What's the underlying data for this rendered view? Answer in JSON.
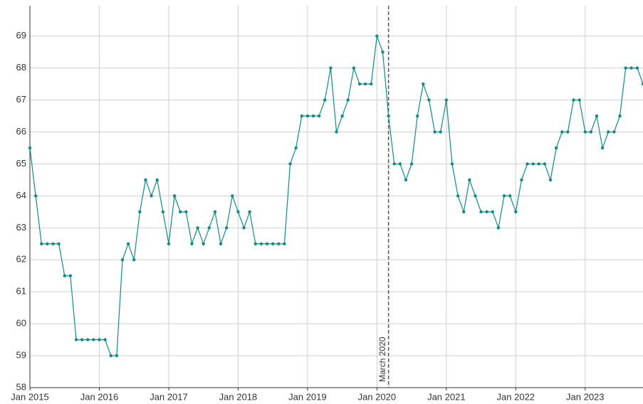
{
  "chart_data": {
    "type": "line",
    "x": [
      "2015-01",
      "2015-02",
      "2015-03",
      "2015-04",
      "2015-05",
      "2015-06",
      "2015-07",
      "2015-08",
      "2015-09",
      "2015-10",
      "2015-11",
      "2015-12",
      "2016-01",
      "2016-02",
      "2016-03",
      "2016-04",
      "2016-05",
      "2016-06",
      "2016-07",
      "2016-08",
      "2016-09",
      "2016-10",
      "2016-11",
      "2016-12",
      "2017-01",
      "2017-02",
      "2017-03",
      "2017-04",
      "2017-05",
      "2017-06",
      "2017-07",
      "2017-08",
      "2017-09",
      "2017-10",
      "2017-11",
      "2017-12",
      "2018-01",
      "2018-02",
      "2018-03",
      "2018-04",
      "2018-05",
      "2018-06",
      "2018-07",
      "2018-08",
      "2018-09",
      "2018-10",
      "2018-11",
      "2018-12",
      "2019-01",
      "2019-02",
      "2019-03",
      "2019-04",
      "2019-05",
      "2019-06",
      "2019-07",
      "2019-08",
      "2019-09",
      "2019-10",
      "2019-11",
      "2019-12",
      "2020-01",
      "2020-02",
      "2020-03",
      "2020-04",
      "2020-05",
      "2020-06",
      "2020-07",
      "2020-08",
      "2020-09",
      "2020-10",
      "2020-11",
      "2020-12",
      "2021-01",
      "2021-02",
      "2021-03",
      "2021-04",
      "2021-05",
      "2021-06",
      "2021-07",
      "2021-08",
      "2021-09",
      "2021-10",
      "2021-11",
      "2021-12",
      "2022-01",
      "2022-02",
      "2022-03",
      "2022-04",
      "2022-05",
      "2022-06",
      "2022-07",
      "2022-08",
      "2022-09",
      "2022-10",
      "2022-11",
      "2022-12",
      "2023-01",
      "2023-02",
      "2023-03",
      "2023-04",
      "2023-05",
      "2023-06",
      "2023-07",
      "2023-08",
      "2023-09",
      "2023-10",
      "2023-11"
    ],
    "series": [
      {
        "color": "#138a8a",
        "values": [
          65.5,
          64,
          62.5,
          62.5,
          62.5,
          62.5,
          61.5,
          61.5,
          59.5,
          59.5,
          59.5,
          59.5,
          59.5,
          59.5,
          59,
          59,
          62,
          62.5,
          62,
          63.5,
          64.5,
          64,
          64.5,
          63.5,
          62.5,
          64,
          63.5,
          63.5,
          62.5,
          63,
          62.5,
          63,
          63.5,
          62.5,
          63,
          64,
          63.5,
          63,
          63.5,
          62.5,
          62.5,
          62.5,
          62.5,
          62.5,
          62.5,
          65,
          65.5,
          66.5,
          66.5,
          66.5,
          66.5,
          67,
          68,
          66,
          66.5,
          67,
          68,
          67.5,
          67.5,
          67.5,
          69,
          68.5,
          66.5,
          65,
          65,
          64.5,
          65,
          66.5,
          67.5,
          67,
          66,
          66,
          67,
          65,
          64,
          63.5,
          64.5,
          64,
          63.5,
          63.5,
          63.5,
          63,
          64,
          64,
          63.5,
          64.5,
          65,
          65,
          65,
          65,
          64.5,
          65.5,
          66,
          66,
          67,
          67,
          66,
          66,
          66.5,
          65.5,
          66,
          66,
          66.5,
          68,
          68,
          68,
          67.5
        ]
      }
    ],
    "xlim": [
      "2015-01",
      "2023-11"
    ],
    "xticks": [
      {
        "value": "2015-01",
        "label": "Jan 2015"
      },
      {
        "value": "2016-01",
        "label": "Jan 2016"
      },
      {
        "value": "2017-01",
        "label": "Jan 2017"
      },
      {
        "value": "2018-01",
        "label": "Jan 2018"
      },
      {
        "value": "2019-01",
        "label": "Jan 2019"
      },
      {
        "value": "2020-01",
        "label": "Jan 2020"
      },
      {
        "value": "2021-01",
        "label": "Jan 2021"
      },
      {
        "value": "2022-01",
        "label": "Jan 2022"
      },
      {
        "value": "2023-01",
        "label": "Jan 2023"
      }
    ],
    "ylim": [
      58,
      69.95
    ],
    "yticks": [
      58,
      59,
      60,
      61,
      62,
      63,
      64,
      65,
      66,
      67,
      68,
      69
    ],
    "grid": true,
    "annotations": [
      {
        "x": "2020-03",
        "text": "March 2020"
      }
    ]
  }
}
